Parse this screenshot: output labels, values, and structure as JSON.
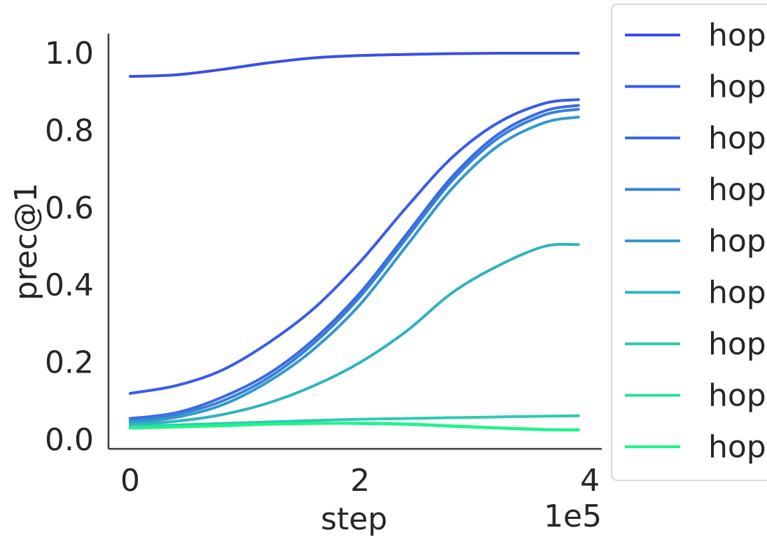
{
  "chart_data": {
    "type": "line",
    "title": "",
    "xlabel": "step",
    "ylabel": "prec@1",
    "x_offset_label": "1e5",
    "xlim": [
      -0.1,
      4.0
    ],
    "ylim": [
      -0.03,
      1.05
    ],
    "x_ticks": [
      {
        "value": 0,
        "label": "0"
      },
      {
        "value": 2,
        "label": "2"
      },
      {
        "value": 4,
        "label": "4"
      }
    ],
    "y_ticks": [
      {
        "value": 0.0,
        "label": "0.0"
      },
      {
        "value": 0.2,
        "label": "0.2"
      },
      {
        "value": 0.4,
        "label": "0.4"
      },
      {
        "value": 0.6,
        "label": "0.6"
      },
      {
        "value": 0.8,
        "label": "0.8"
      },
      {
        "value": 1.0,
        "label": "1.0"
      }
    ],
    "grid": false,
    "legend_position": "right, outside (clipped)",
    "x": [
      0,
      0.4,
      0.8,
      1.2,
      1.6,
      2.0,
      2.4,
      2.8,
      3.2,
      3.6,
      3.9
    ],
    "series": [
      {
        "name": "hop",
        "color": "#3a4fe8",
        "values": [
          0.94,
          0.944,
          0.958,
          0.975,
          0.988,
          0.994,
          0.997,
          0.999,
          1.0,
          1.0,
          1.0
        ]
      },
      {
        "name": "hop",
        "color": "#3a5be8",
        "values": [
          0.12,
          0.14,
          0.18,
          0.25,
          0.34,
          0.46,
          0.6,
          0.73,
          0.82,
          0.87,
          0.88
        ]
      },
      {
        "name": "hop",
        "color": "#3a6ae4",
        "values": [
          0.055,
          0.07,
          0.11,
          0.17,
          0.26,
          0.38,
          0.53,
          0.68,
          0.79,
          0.85,
          0.865
        ]
      },
      {
        "name": "hop",
        "color": "#3580d8",
        "values": [
          0.05,
          0.065,
          0.1,
          0.16,
          0.25,
          0.37,
          0.52,
          0.67,
          0.78,
          0.84,
          0.855
        ]
      },
      {
        "name": "hop",
        "color": "#3299cc",
        "values": [
          0.045,
          0.058,
          0.09,
          0.15,
          0.235,
          0.35,
          0.5,
          0.65,
          0.76,
          0.82,
          0.835
        ]
      },
      {
        "name": "hop",
        "color": "#2fb3bf",
        "values": [
          0.04,
          0.048,
          0.065,
          0.095,
          0.14,
          0.2,
          0.28,
          0.38,
          0.45,
          0.5,
          0.505
        ]
      },
      {
        "name": "hop",
        "color": "#2ccbb0",
        "values": [
          0.035,
          0.038,
          0.042,
          0.046,
          0.05,
          0.053,
          0.055,
          0.057,
          0.059,
          0.061,
          0.062
        ]
      },
      {
        "name": "hop",
        "color": "#26e09a",
        "values": [
          0.032,
          0.035,
          0.038,
          0.041,
          0.043,
          0.042,
          0.04,
          0.035,
          0.03,
          0.026,
          0.025
        ]
      },
      {
        "name": "hop",
        "color": "#1ef58a",
        "values": [
          0.03,
          0.033,
          0.036,
          0.04,
          0.042,
          0.043,
          0.041,
          0.036,
          0.031,
          0.027,
          0.026
        ]
      }
    ]
  }
}
